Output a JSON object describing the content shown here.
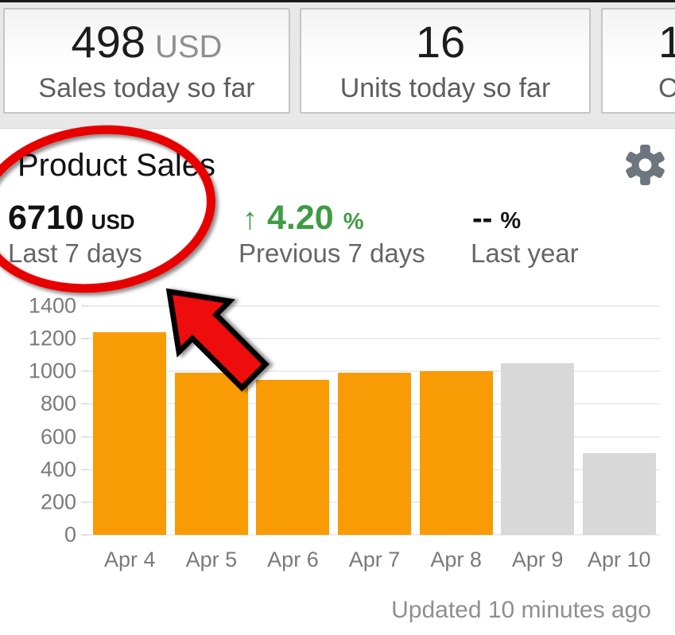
{
  "cards": [
    {
      "value": "498",
      "unit": "USD",
      "label": "Sales today so far"
    },
    {
      "value": "16",
      "unit": "",
      "label": "Units today so far"
    },
    {
      "value": "1",
      "unit": "",
      "label": "C"
    }
  ],
  "panel": {
    "title": "Product Sales",
    "updated": "Updated 10 minutes ago",
    "metrics": {
      "primary": {
        "value": "6710",
        "unit": "USD",
        "label": "Last 7 days"
      },
      "change": {
        "arrow": "↑",
        "value": "4.20",
        "unit": "%",
        "label": "Previous 7 days"
      },
      "last_year": {
        "value": "--",
        "unit": "%",
        "label": "Last year"
      }
    }
  },
  "colors": {
    "bar_orange": "#F99B05",
    "bar_gray": "#D8D8D8",
    "positive_green": "#3F9C43",
    "annotation_red": "#E60000",
    "gear_gray": "#6D767E"
  },
  "chart_data": {
    "type": "bar",
    "title": "Product Sales",
    "categories": [
      "Apr 4",
      "Apr 5",
      "Apr 6",
      "Apr 7",
      "Apr 8",
      "Apr 9",
      "Apr 10"
    ],
    "values": [
      1240,
      990,
      950,
      990,
      1000,
      1050,
      500
    ],
    "bar_colors": [
      "#F99B05",
      "#F99B05",
      "#F99B05",
      "#F99B05",
      "#F99B05",
      "#D8D8D8",
      "#D8D8D8"
    ],
    "xlabel": "",
    "ylabel": "",
    "ylim": [
      0,
      1400
    ],
    "yticks": [
      0,
      200,
      400,
      600,
      800,
      1000,
      1200,
      1400
    ],
    "grid": true,
    "legend": false
  }
}
